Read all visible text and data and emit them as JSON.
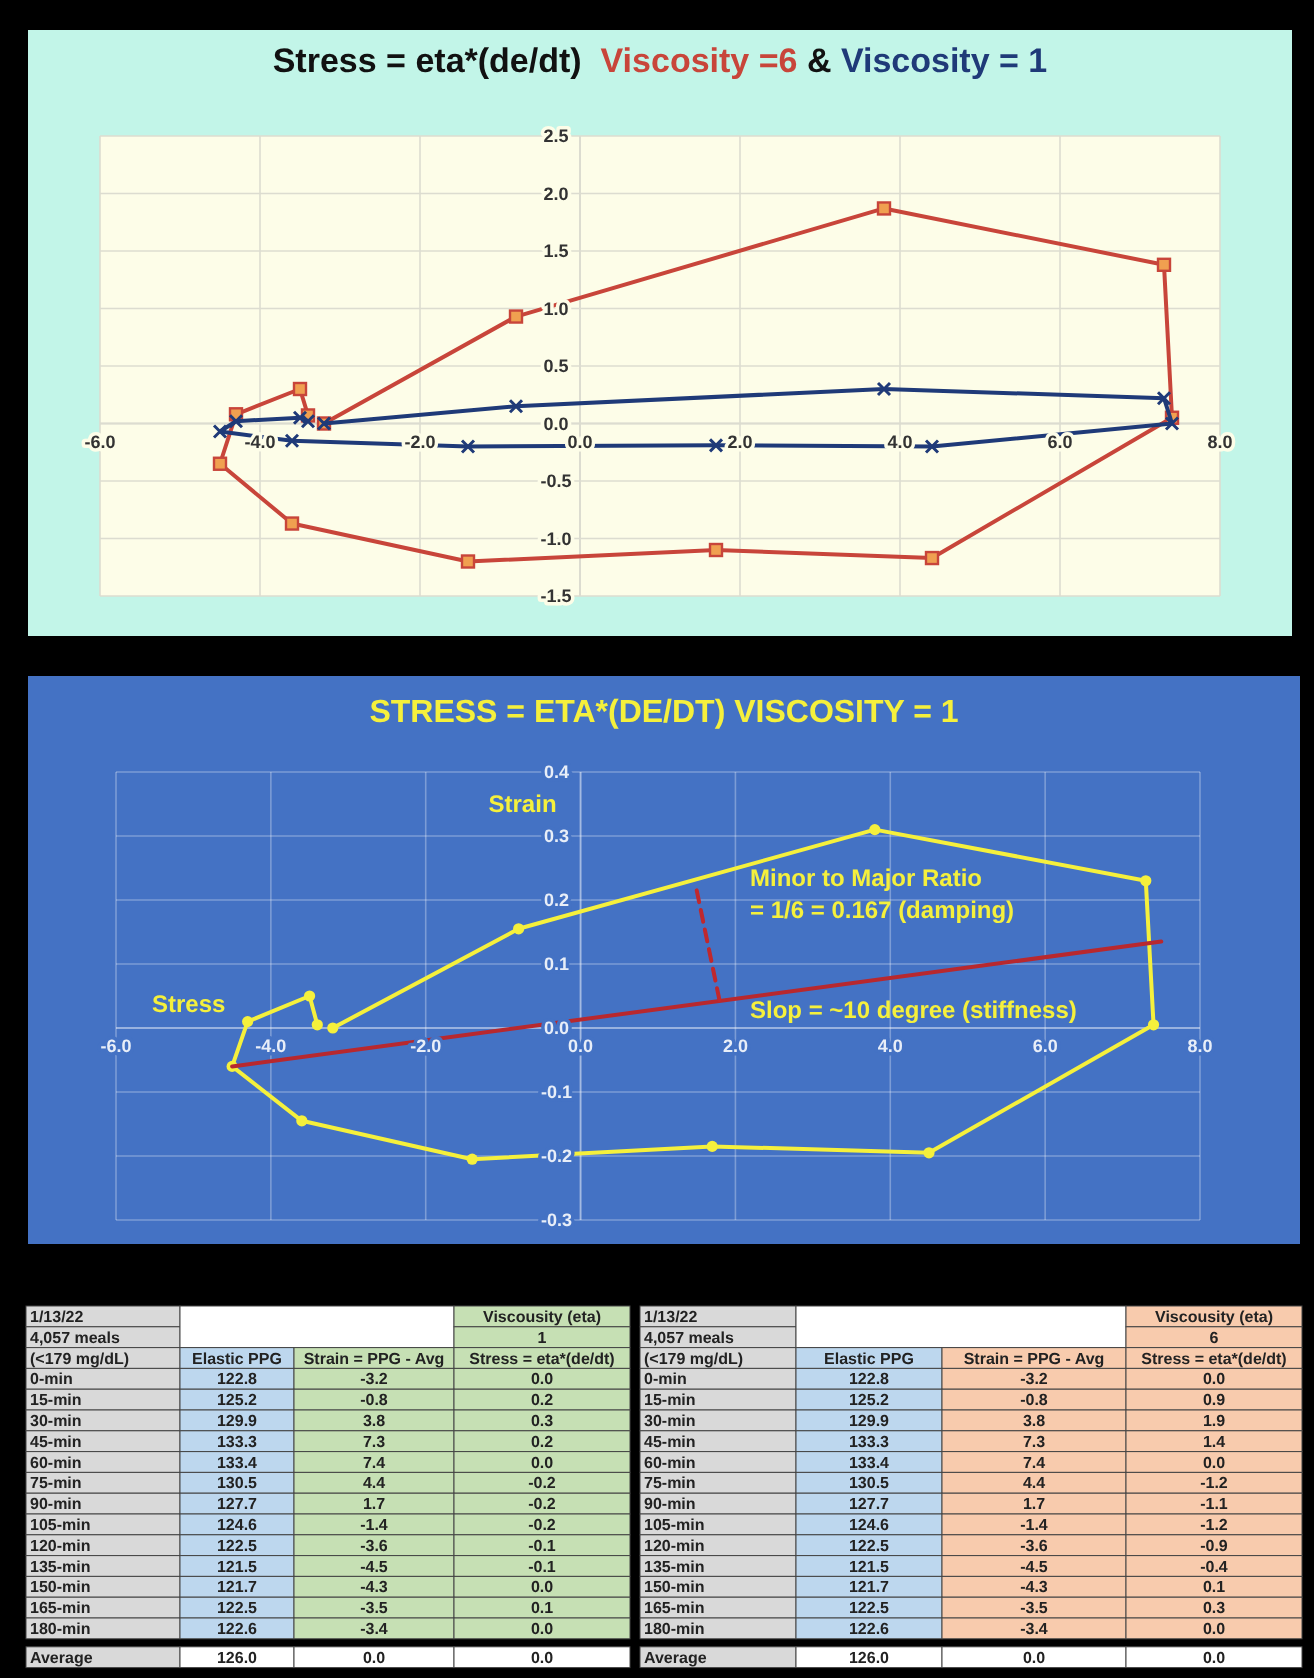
{
  "chart_data": [
    {
      "type": "line",
      "title": "Stress = eta*(de/dt)",
      "annotations": [
        "&"
      ],
      "legend": "top",
      "grid": true,
      "marker": "square",
      "xlim": [
        -6,
        8
      ],
      "ylim": [
        -1.5,
        2.5
      ],
      "xticks": [
        {
          "value": -6,
          "label": "-6.0"
        },
        {
          "value": -4,
          "label": "-4.0"
        },
        {
          "value": -2,
          "label": "-2.0"
        },
        {
          "value": 0,
          "label": "0.0"
        },
        {
          "value": 2,
          "label": "2.0"
        },
        {
          "value": 4,
          "label": "4.0"
        },
        {
          "value": 6,
          "label": "6.0"
        },
        {
          "value": 8,
          "label": "8.0"
        }
      ],
      "yticks": [
        -1.5,
        {
          "value": -1,
          "label": "-1.0"
        },
        -0.5,
        {
          "value": 0,
          "label": "0.0"
        },
        0.5,
        {
          "value": 1,
          "label": "1.0"
        },
        1.5,
        {
          "value": 2,
          "label": "2.0"
        },
        2.5
      ],
      "series": [
        {
          "name": "Viscosity =6",
          "color": "#c8453a",
          "x": [
            -3.2,
            -0.8,
            3.8,
            7.3,
            7.4,
            4.4,
            1.7,
            -1.4,
            -3.6,
            -4.5,
            -4.3,
            -3.5,
            -3.4
          ],
          "values": [
            0.0,
            0.93,
            1.87,
            1.38,
            0.05,
            -1.17,
            -1.1,
            -1.2,
            -0.87,
            -0.35,
            0.08,
            0.3,
            0.07
          ]
        },
        {
          "name": "Viscosity = 1",
          "color": "#1f3a78",
          "marker": "cross",
          "x": [
            -3.2,
            -0.8,
            3.8,
            7.3,
            7.4,
            4.4,
            1.7,
            -1.4,
            -3.6,
            -4.5,
            -4.3,
            -3.5,
            -3.4
          ],
          "values": [
            0.0,
            0.15,
            0.3,
            0.22,
            0.0,
            -0.2,
            -0.19,
            -0.2,
            -0.15,
            -0.07,
            0.02,
            0.05,
            0.02
          ]
        }
      ]
    },
    {
      "type": "line",
      "title": "STRESS = ETA*(DE/DT)  VISCOSITY = 1",
      "xlabel": "Stress",
      "ylabel": "Strain",
      "grid": true,
      "marker": "circle",
      "xlim": [
        -6,
        8
      ],
      "ylim": [
        -0.3,
        0.4
      ],
      "xticks": [
        {
          "value": -6,
          "label": "-6.0"
        },
        {
          "value": -4,
          "label": "-4.0"
        },
        {
          "value": -2,
          "label": "-2.0"
        },
        {
          "value": 0,
          "label": "0.0"
        },
        {
          "value": 2,
          "label": "2.0"
        },
        {
          "value": 4,
          "label": "4.0"
        },
        {
          "value": 6,
          "label": "6.0"
        },
        {
          "value": 8,
          "label": "8.0"
        }
      ],
      "yticks": [
        -0.3,
        -0.2,
        -0.1,
        {
          "value": 0,
          "label": "0.0"
        },
        0.1,
        0.2,
        0.3,
        0.4
      ],
      "annotations": [
        "Minor to Major Ratio",
        "= 1/6  = 0.167 (damping)",
        "Slop = ~10 degree (stiffness)"
      ],
      "series": [
        {
          "color": "#f5f03c",
          "x": [
            -3.2,
            -0.8,
            3.8,
            7.3,
            7.4,
            4.5,
            1.7,
            -1.4,
            -3.6,
            -4.5,
            -4.3,
            -3.5,
            -3.4
          ],
          "values": [
            0.0,
            0.155,
            0.31,
            0.23,
            0.005,
            -0.195,
            -0.185,
            -0.205,
            -0.145,
            -0.06,
            0.01,
            0.05,
            0.005
          ]
        },
        {
          "color": "#b8282e",
          "marker": "none",
          "x": [
            -4.5,
            7.5
          ],
          "values": [
            -0.06,
            0.135
          ]
        },
        {
          "color": "#c0282d",
          "marker": "none",
          "line_style": "dashed",
          "x": [
            1.5,
            1.8
          ],
          "values": [
            0.215,
            0.04
          ]
        }
      ]
    },
    {
      "type": "heatmap",
      "annotations": [
        "1/13/22",
        "4,057 meals",
        "(<179 mg/dL)",
        "Viscousity (eta)",
        "1"
      ],
      "categories": [
        "Elastic PPG",
        "Strain = PPG - Avg",
        "Stress = eta*(de/dt)"
      ],
      "colors": [
        "#bdd7ee",
        "#c6e0b4",
        "#c6e0b4"
      ],
      "data_labels": true,
      "cell_labels": [
        [
          "122.8",
          "-3.2",
          "0.0"
        ],
        [
          "125.2",
          "-0.8",
          "0.2"
        ],
        [
          "129.9",
          "3.8",
          "0.3"
        ],
        [
          "133.3",
          "7.3",
          "0.2"
        ],
        [
          "133.4",
          "7.4",
          "0.0"
        ],
        [
          "130.5",
          "4.4",
          "-0.2"
        ],
        [
          "127.7",
          "1.7",
          "-0.2"
        ],
        [
          "124.6",
          "-1.4",
          "-0.2"
        ],
        [
          "122.5",
          "-3.6",
          "-0.1"
        ],
        [
          "121.5",
          "-4.5",
          "-0.1"
        ],
        [
          "121.7",
          "-4.3",
          "0.0"
        ],
        [
          "122.5",
          "-3.5",
          "0.1"
        ],
        [
          "122.6",
          "-3.4",
          "0.0"
        ],
        [
          "126.0",
          "0.0",
          "0.0"
        ]
      ],
      "y_categories": [
        "0-min",
        "15-min",
        "30-min",
        "45-min",
        "60-min",
        "75-min",
        "90-min",
        "105-min",
        "120-min",
        "135-min",
        "150-min",
        "165-min",
        "180-min",
        "Average"
      ],
      "cells": [
        [
          122.8,
          -3.2,
          0.0
        ],
        [
          125.2,
          -0.8,
          0.2
        ],
        [
          129.9,
          3.8,
          0.3
        ],
        [
          133.3,
          7.3,
          0.2
        ],
        [
          133.4,
          7.4,
          0.0
        ],
        [
          130.5,
          4.4,
          -0.2
        ],
        [
          127.7,
          1.7,
          -0.2
        ],
        [
          124.6,
          -1.4,
          -0.2
        ],
        [
          122.5,
          -3.6,
          -0.1
        ],
        [
          121.5,
          -4.5,
          -0.1
        ],
        [
          121.7,
          -4.3,
          0.0
        ],
        [
          122.5,
          -3.5,
          0.1
        ],
        [
          122.6,
          -3.4,
          0.0
        ],
        [
          126.0,
          0.0,
          0.0
        ]
      ]
    },
    {
      "type": "heatmap",
      "annotations": [
        "1/13/22",
        "4,057 meals",
        "(<179 mg/dL)",
        "Viscousity (eta)",
        "6"
      ],
      "categories": [
        "Elastic PPG",
        "Strain = PPG - Avg",
        "Stress = eta*(de/dt)"
      ],
      "colors": [
        "#bdd7ee",
        "#f8cbad",
        "#f8cbad"
      ],
      "data_labels": true,
      "cell_labels": [
        [
          "122.8",
          "-3.2",
          "0.0"
        ],
        [
          "125.2",
          "-0.8",
          "0.9"
        ],
        [
          "129.9",
          "3.8",
          "1.9"
        ],
        [
          "133.3",
          "7.3",
          "1.4"
        ],
        [
          "133.4",
          "7.4",
          "0.0"
        ],
        [
          "130.5",
          "4.4",
          "-1.2"
        ],
        [
          "127.7",
          "1.7",
          "-1.1"
        ],
        [
          "124.6",
          "-1.4",
          "-1.2"
        ],
        [
          "122.5",
          "-3.6",
          "-0.9"
        ],
        [
          "121.5",
          "-4.5",
          "-0.4"
        ],
        [
          "121.7",
          "-4.3",
          "0.1"
        ],
        [
          "122.5",
          "-3.5",
          "0.3"
        ],
        [
          "122.6",
          "-3.4",
          "0.0"
        ],
        [
          "126.0",
          "0.0",
          "0.0"
        ]
      ],
      "y_categories": [
        "0-min",
        "15-min",
        "30-min",
        "45-min",
        "60-min",
        "75-min",
        "90-min",
        "105-min",
        "120-min",
        "135-min",
        "150-min",
        "165-min",
        "180-min",
        "Average"
      ],
      "cells": [
        [
          122.8,
          -3.2,
          0.0
        ],
        [
          125.2,
          -0.8,
          0.9
        ],
        [
          129.9,
          3.8,
          1.9
        ],
        [
          133.3,
          7.3,
          1.4
        ],
        [
          133.4,
          7.4,
          0.0
        ],
        [
          130.5,
          4.4,
          -1.2
        ],
        [
          127.7,
          1.7,
          -1.1
        ],
        [
          124.6,
          -1.4,
          -1.2
        ],
        [
          122.5,
          -3.6,
          -0.9
        ],
        [
          121.5,
          -4.5,
          -0.4
        ],
        [
          121.7,
          -4.3,
          0.1
        ],
        [
          122.5,
          -3.5,
          0.3
        ],
        [
          122.6,
          -3.4,
          0.0
        ],
        [
          126.0,
          0.0,
          0.0
        ]
      ]
    }
  ]
}
